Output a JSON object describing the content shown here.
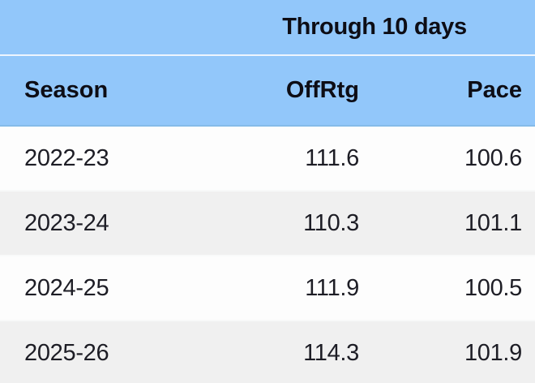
{
  "table": {
    "spanner": "Through 10 days",
    "columns": {
      "season": "Season",
      "offrtg": "OffRtg",
      "pace": "Pace"
    },
    "rows": [
      {
        "season": "2022-23",
        "offrtg": "111.6",
        "pace": "100.6"
      },
      {
        "season": "2023-24",
        "offrtg": "110.3",
        "pace": "101.1"
      },
      {
        "season": "2024-25",
        "offrtg": "111.9",
        "pace": "100.5"
      },
      {
        "season": "2025-26",
        "offrtg": "114.3",
        "pace": "101.9"
      }
    ],
    "colors": {
      "header_blue": "#92c7fa",
      "header_divider_line": "#eef5fe",
      "header_bottom_edge": "#85bbe9",
      "row_white": "#fdfdfd",
      "row_alt_gray": "#f0f0f0",
      "text_dark": "#1d1d25"
    }
  },
  "chart_data": {
    "type": "table",
    "title": "Through 10 days",
    "columns": [
      "Season",
      "OffRtg",
      "Pace"
    ],
    "rows": [
      [
        "2022-23",
        111.6,
        100.6
      ],
      [
        "2023-24",
        110.3,
        101.1
      ],
      [
        "2024-25",
        111.9,
        100.5
      ],
      [
        "2025-26",
        114.3,
        101.9
      ]
    ],
    "layout_hints": {
      "spanner_spans": [
        "OffRtg",
        "Pace"
      ],
      "numeric_alignment": "right",
      "zebra_striping": true
    }
  }
}
